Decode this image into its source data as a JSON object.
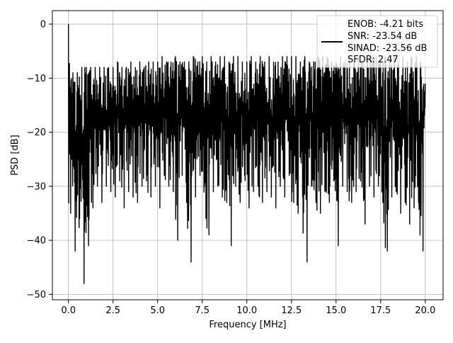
{
  "chart_data": {
    "type": "line",
    "title": "",
    "xlabel": "Frequency [MHz]",
    "ylabel": "PSD [dB]",
    "xlim": [
      -0.9,
      21.0
    ],
    "ylim": [
      -51.0,
      2.5
    ],
    "xticks": [
      0.0,
      2.5,
      5.0,
      7.5,
      10.0,
      12.5,
      15.0,
      17.5,
      20.0
    ],
    "xtick_labels": [
      "0.0",
      "2.5",
      "5.0",
      "7.5",
      "10.0",
      "12.5",
      "15.0",
      "17.5",
      "20.0"
    ],
    "yticks": [
      0,
      -10,
      -20,
      -30,
      -40,
      -50
    ],
    "ytick_labels": [
      "0",
      "−10",
      "−20",
      "−30",
      "−40",
      "−50"
    ],
    "grid": true,
    "legend_position": "top-right",
    "legend_entries": [
      "ENOB: -4.21 bits",
      "SNR: -23.54 dB",
      "SINAD: -23.56 dB",
      "SFDR: 2.47"
    ],
    "series": [
      {
        "color": "#000000",
        "x": [
          0.0,
          0.25,
          0.5,
          0.75,
          1.0,
          1.25,
          1.5,
          1.75,
          2.0,
          2.25,
          2.5,
          2.75,
          3.0,
          3.25,
          3.5,
          3.75,
          4.0,
          4.25,
          4.5,
          4.75,
          5.0,
          5.25,
          5.5,
          5.75,
          6.0,
          6.25,
          6.5,
          6.75,
          7.0,
          7.25,
          7.5,
          7.75,
          8.0,
          8.25,
          8.5,
          8.75,
          9.0,
          9.25,
          9.5,
          9.75,
          10.0,
          10.25,
          10.5,
          10.75,
          11.0,
          11.25,
          11.5,
          11.75,
          12.0,
          12.25,
          12.5,
          12.75,
          13.0,
          13.25,
          13.5,
          13.75,
          14.0,
          14.25,
          14.5,
          14.75,
          15.0,
          15.25,
          15.5,
          15.75,
          16.0,
          16.25,
          16.5,
          16.75,
          17.0,
          17.25,
          17.5,
          17.75,
          18.0,
          18.25,
          18.5,
          18.75,
          19.0,
          19.25,
          19.5,
          19.75,
          20.0
        ],
        "y_max": [
          0,
          -9,
          -9,
          -8,
          -8,
          -8,
          -8,
          -8,
          -8,
          -8,
          -8,
          -7,
          -8,
          -8,
          -7,
          -8,
          -7,
          -8,
          -7,
          -7,
          -7,
          -6,
          -7,
          -7,
          -6,
          -7,
          -7,
          -7,
          -6,
          -7,
          -6,
          -7,
          -6,
          -7,
          -6,
          -6,
          -7,
          -6,
          -6,
          -7,
          -7,
          -6,
          -7,
          -6,
          -7,
          -6,
          -7,
          -7,
          -6,
          -6,
          -6,
          -6,
          -7,
          -6,
          -7,
          -7,
          -6,
          -6,
          -6,
          -7,
          -7,
          -6,
          -7,
          -6,
          -7,
          -6,
          -7,
          -7,
          -6,
          -6,
          -7,
          -6,
          -7,
          -6,
          -7,
          -6,
          -7,
          -6,
          -6,
          -7,
          -11
        ],
        "y_min": [
          -35,
          -42,
          -36,
          -48,
          -41,
          -34,
          -30,
          -33,
          -30,
          -31,
          -32,
          -29,
          -34,
          -31,
          -32,
          -33,
          -30,
          -29,
          -32,
          -30,
          -34,
          -28,
          -30,
          -31,
          -40,
          -28,
          -33,
          -44,
          -32,
          -28,
          -30,
          -39,
          -31,
          -30,
          -32,
          -33,
          -41,
          -30,
          -33,
          -28,
          -34,
          -31,
          -30,
          -33,
          -31,
          -32,
          -34,
          -30,
          -32,
          -28,
          -33,
          -35,
          -32,
          -44,
          -30,
          -33,
          -35,
          -31,
          -33,
          -29,
          -41,
          -30,
          -31,
          -33,
          -31,
          -29,
          -37,
          -30,
          -32,
          -30,
          -33,
          -42,
          -32,
          -31,
          -35,
          -33,
          -37,
          -34,
          -33,
          -42,
          -20
        ]
      }
    ]
  }
}
